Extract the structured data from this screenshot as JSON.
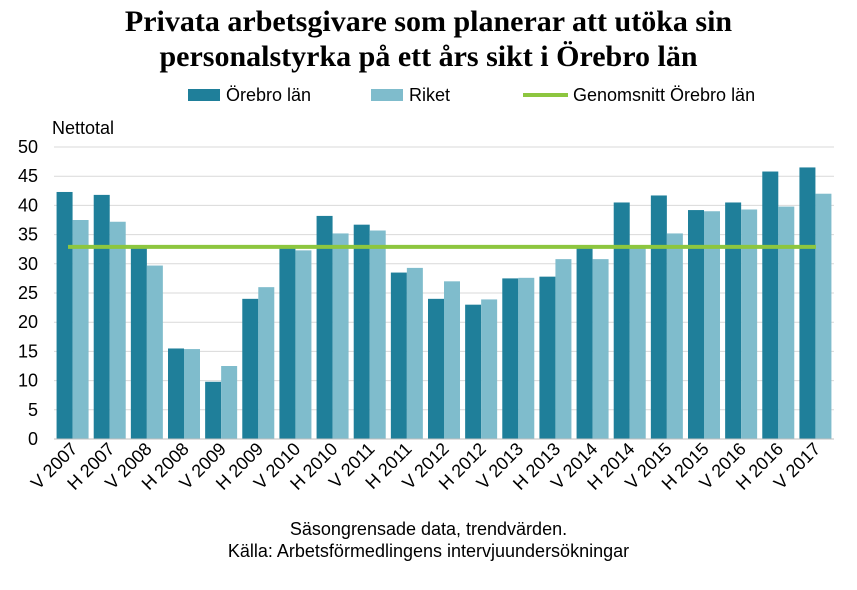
{
  "title_line1": "Privata arbetsgivare som planerar att utöka sin",
  "title_line2": "personalstyrka på ett års sikt i Örebro län",
  "ylabel": "Nettotal",
  "note_line1": "Säsongrensade data, trendvärden.",
  "note_line2": "Källa: Arbetsförmedlingens  intervjuundersökningar",
  "colors": {
    "orebro": "#1f7f9a",
    "riket": "#7fbccc",
    "average": "#8dc63f",
    "grid": "#d9d9d9"
  },
  "chart_data": {
    "type": "bar",
    "categories": [
      "V 2007",
      "H 2007",
      "V 2008",
      "H 2008",
      "V 2009",
      "H 2009",
      "V 2010",
      "H 2010",
      "V 2011",
      "H 2011",
      "V 2012",
      "H 2012",
      "V 2013",
      "H 2013",
      "V 2014",
      "H 2014",
      "V 2015",
      "H 2015",
      "V 2016",
      "H 2016",
      "V 2017"
    ],
    "series": [
      {
        "name": "Örebro län",
        "values": [
          42.3,
          41.8,
          32.9,
          15.5,
          9.8,
          24.0,
          33.1,
          38.2,
          36.7,
          28.5,
          24.0,
          23.0,
          27.5,
          27.8,
          33.0,
          40.5,
          41.7,
          39.2,
          40.5,
          45.8,
          46.5
        ]
      },
      {
        "name": "Riket",
        "values": [
          37.5,
          37.2,
          29.7,
          15.4,
          12.5,
          26.0,
          32.3,
          35.2,
          35.7,
          29.3,
          27.0,
          23.9,
          27.6,
          30.8,
          30.8,
          33.2,
          35.2,
          39.0,
          39.3,
          39.8,
          42.0
        ]
      }
    ],
    "reference_line": {
      "name": "Genomsnitt Örebro län",
      "value": 32.9
    },
    "xlabel": "",
    "ylabel": "Nettotal",
    "ylim": [
      0,
      50
    ],
    "yticks": [
      0,
      5,
      10,
      15,
      20,
      25,
      30,
      35,
      40,
      45,
      50
    ],
    "grid": true,
    "legend_position": "top"
  }
}
